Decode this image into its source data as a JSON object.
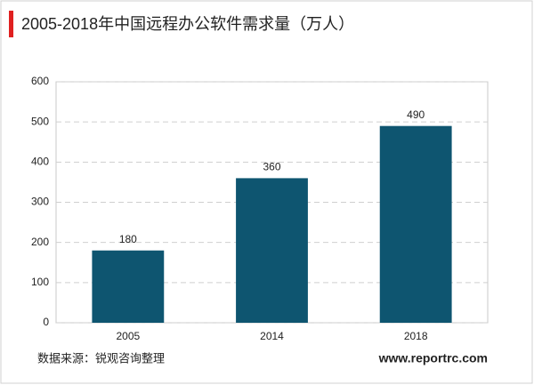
{
  "chart_data": {
    "type": "bar",
    "title": "2005-2018年中国远程办公软件需求量（万人）",
    "categories": [
      "2005",
      "2014",
      "2018"
    ],
    "values": [
      180,
      360,
      490
    ],
    "color": "#0e5570",
    "ylim": [
      0,
      600
    ],
    "yticks": [
      0,
      100,
      200,
      300,
      400,
      500,
      600
    ],
    "grid": true,
    "source": "数据来源：锐观咨询整理",
    "website": "www.reportrc.com"
  }
}
